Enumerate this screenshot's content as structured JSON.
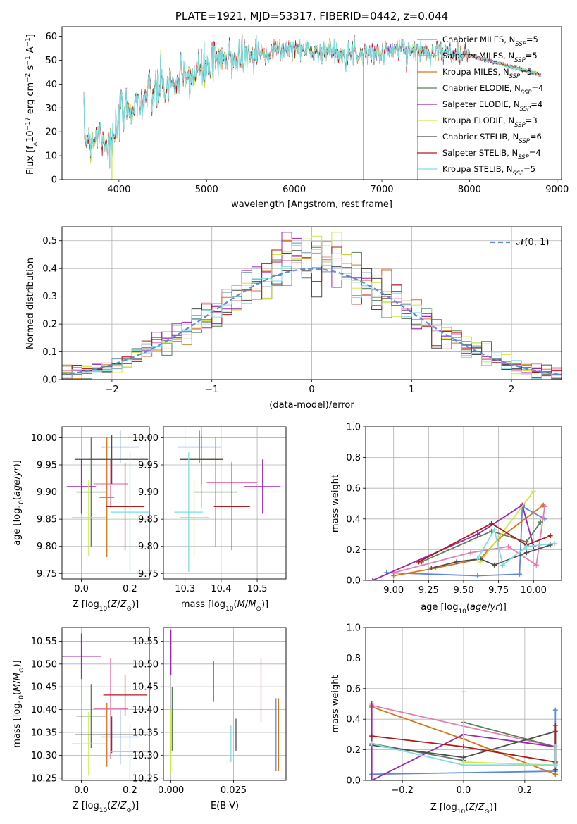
{
  "chart_data": [
    {
      "panel": "spectrum",
      "type": "line",
      "title": "PLATE=1921, MJD=53317, FIBERID=0442, z=0.044",
      "xlabel": "wavelength [Angstrom, rest frame]",
      "ylabel": "Flux [f_λ10^-17 erg cm^-2 s^-1 A^-1]",
      "xlim": [
        3350,
        9050
      ],
      "ylim": [
        0,
        64
      ],
      "xticks": [
        "4000",
        "5000",
        "6000",
        "7000",
        "8000",
        "9000"
      ],
      "yticks": [
        "0",
        "10",
        "20",
        "30",
        "40",
        "50",
        "60"
      ],
      "legend_position": "upper right",
      "continuum": {
        "x": [
          3600,
          3700,
          3800,
          3900,
          3950,
          4000,
          4100,
          4200,
          4300,
          4400,
          4500,
          4600,
          4700,
          4800,
          4900,
          5000,
          5100,
          5200,
          5300,
          5400,
          5500,
          5600,
          5800,
          6000,
          6200,
          6400,
          6600,
          6800,
          7000,
          7200,
          7400,
          7600,
          7800,
          8000,
          8200,
          8400,
          8600,
          8800
        ],
        "y": [
          18,
          17,
          20,
          13,
          17,
          26,
          30,
          32,
          34,
          36,
          39,
          40,
          41,
          43,
          45,
          47,
          48,
          49,
          51,
          52,
          52,
          53,
          54,
          55,
          54,
          54,
          53,
          53,
          53,
          55,
          54,
          54,
          53,
          52,
          50,
          48,
          46,
          44
        ]
      },
      "legend": [
        {
          "name": "Chabrier MILES, N",
          "sub": "SSP",
          "tail": "=5",
          "color": "#6699aa"
        },
        {
          "name": "Salpeter MILES, N",
          "sub": "SSP",
          "tail": "=5",
          "color": "#e37fb4"
        },
        {
          "name": "Kroupa MILES, N",
          "sub": "SSP",
          "tail": "=5",
          "color": "#d4761a"
        },
        {
          "name": "Chabrier ELODIE, N",
          "sub": "SSP",
          "tail": "=4",
          "color": "#5a7f5a"
        },
        {
          "name": "Salpeter ELODIE, N",
          "sub": "SSP",
          "tail": "=4",
          "color": "#9b27b0"
        },
        {
          "name": "Kroupa ELODIE, N",
          "sub": "SSP",
          "tail": "=3",
          "color": "#cde84a"
        },
        {
          "name": "Chabrier STELIB, N",
          "sub": "SSP",
          "tail": "=6",
          "color": "#4d4d4d"
        },
        {
          "name": "Salpeter STELIB, N",
          "sub": "SSP",
          "tail": "=4",
          "color": "#b01a1a"
        },
        {
          "name": "Kroupa STELIB, N",
          "sub": "SSP",
          "tail": "=5",
          "color": "#7fdde0"
        }
      ]
    },
    {
      "panel": "residual_histogram",
      "type": "bar",
      "xlabel": "(data-model)/error",
      "ylabel": "Normed distribution",
      "xlim": [
        -2.5,
        2.5
      ],
      "ylim": [
        0,
        0.55
      ],
      "xticks": [
        "−2",
        "−1",
        "0",
        "1",
        "2"
      ],
      "yticks": [
        "0.0",
        "0.1",
        "0.2",
        "0.3",
        "0.4",
        "0.5"
      ],
      "legend": "𝒩(0, 1)",
      "bin_width": 0.1,
      "bin_start": -2.5,
      "curve": "standard normal"
    },
    {
      "panel": "age_vs_Z",
      "type": "scatter",
      "xlabel": "Z [log10(Z/Z☉)]",
      "ylabel": "age  [log10(age/yr)]",
      "xlim": [
        -0.08,
        0.28
      ],
      "ylim": [
        9.74,
        10.02
      ],
      "xticks": [
        "0.0",
        "0.2"
      ],
      "yticks": [
        "9.75",
        "9.80",
        "9.85",
        "9.90",
        "9.95",
        "10.00"
      ],
      "points": [
        {
          "x": 0.16,
          "xerr": 0.08,
          "y": 9.983,
          "yerr": 0.03,
          "color": "#5e88d8"
        },
        {
          "x": 0.12,
          "xerr": 0.07,
          "y": 9.915,
          "yerr": 0.045,
          "color": "#e37fb4"
        },
        {
          "x": 0.105,
          "xerr": 0.03,
          "y": 9.89,
          "yerr": 0.11,
          "color": "#d4761a"
        },
        {
          "x": 0.04,
          "xerr": 0.06,
          "y": 9.9,
          "yerr": 0.1,
          "color": "#5a7f5a"
        },
        {
          "x": 0.0,
          "xerr": 0.06,
          "y": 9.91,
          "yerr": 0.05,
          "color": "#9b27b0"
        },
        {
          "x": 0.03,
          "xerr": 0.07,
          "y": 9.853,
          "yerr": 0.07,
          "color": "#cde84a"
        },
        {
          "x": 0.125,
          "xerr": 0.15,
          "y": 9.96,
          "yerr": 0.045,
          "color": "#4d4d4d"
        },
        {
          "x": 0.18,
          "xerr": 0.08,
          "y": 9.873,
          "yerr": 0.08,
          "color": "#b01a1a"
        },
        {
          "x": 0.2,
          "xerr": 0.08,
          "y": 9.863,
          "yerr": 0.11,
          "color": "#7fdde0"
        }
      ]
    },
    {
      "panel": "age_vs_mass",
      "type": "scatter",
      "xlabel": "mass [log10(M/M☉)]",
      "ylabel": "",
      "xlim": [
        10.24,
        10.58
      ],
      "ylim": [
        9.74,
        10.02
      ],
      "xticks": [
        "10.3",
        "10.4",
        "10.5"
      ],
      "yticks": [
        "9.75",
        "9.80",
        "9.85",
        "9.90",
        "9.95",
        "10.00"
      ],
      "points": [
        {
          "x": 10.34,
          "xerr": 0.06,
          "y": 9.983,
          "yerr": 0.03,
          "color": "#5e88d8"
        },
        {
          "x": 10.43,
          "xerr": 0.07,
          "y": 9.917,
          "yerr": 0.04,
          "color": "#e37fb4"
        },
        {
          "x": 10.345,
          "xerr": 0.06,
          "y": 9.96,
          "yerr": 0.09,
          "color": "#d4761a"
        },
        {
          "x": 10.385,
          "xerr": 0.06,
          "y": 9.9,
          "yerr": 0.1,
          "color": "#5a7f5a"
        },
        {
          "x": 10.515,
          "xerr": 0.05,
          "y": 9.91,
          "yerr": 0.05,
          "color": "#9b27b0"
        },
        {
          "x": 10.325,
          "xerr": 0.04,
          "y": 9.853,
          "yerr": 0.07,
          "color": "#cde84a"
        },
        {
          "x": 10.345,
          "xerr": 0.06,
          "y": 9.96,
          "yerr": 0.045,
          "color": "#4d4d4d"
        },
        {
          "x": 10.43,
          "xerr": 0.05,
          "y": 9.873,
          "yerr": 0.08,
          "color": "#b01a1a"
        },
        {
          "x": 10.31,
          "xerr": 0.04,
          "y": 9.863,
          "yerr": 0.11,
          "color": "#7fdde0"
        }
      ]
    },
    {
      "panel": "weight_vs_age",
      "type": "line",
      "xlabel": "age  [log10(age/yr)]",
      "ylabel": "mass weight",
      "xlim": [
        8.8,
        10.2
      ],
      "ylim": [
        0,
        1
      ],
      "xticks": [
        "9.00",
        "9.25",
        "9.50",
        "9.75",
        "10.00"
      ],
      "yticks": [
        "0.0",
        "0.2",
        "0.4",
        "0.6",
        "0.8",
        "1.0"
      ],
      "series": [
        {
          "color": "#5e88d8",
          "x": [
            8.95,
            9.6,
            9.9,
            9.92,
            10.08
          ],
          "y": [
            0.05,
            0.03,
            0.04,
            0.48,
            0.4
          ]
        },
        {
          "color": "#e37fb4",
          "x": [
            9.0,
            9.55,
            9.82,
            10.02,
            10.08
          ],
          "y": [
            0.05,
            0.18,
            0.22,
            0.1,
            0.48
          ]
        },
        {
          "color": "#d4761a",
          "x": [
            9.0,
            9.3,
            9.62,
            9.75,
            10.07
          ],
          "y": [
            0.03,
            0.08,
            0.14,
            0.27,
            0.49
          ]
        },
        {
          "color": "#5a7f5a",
          "x": [
            9.2,
            9.7,
            9.95,
            10.05
          ],
          "y": [
            0.12,
            0.32,
            0.25,
            0.38
          ]
        },
        {
          "color": "#9b27b0",
          "x": [
            8.85,
            9.6,
            9.92,
            10.0
          ],
          "y": [
            0.0,
            0.3,
            0.49,
            0.22
          ]
        },
        {
          "color": "#cde84a",
          "x": [
            9.62,
            10.0
          ],
          "y": [
            0.12,
            0.58
          ]
        },
        {
          "color": "#4d4d4d",
          "x": [
            9.27,
            9.45,
            9.62,
            9.72,
            9.95,
            10.12
          ],
          "y": [
            0.08,
            0.12,
            0.14,
            0.1,
            0.18,
            0.23
          ]
        },
        {
          "color": "#b01a1a",
          "x": [
            9.18,
            9.7,
            9.95,
            10.12
          ],
          "y": [
            0.12,
            0.37,
            0.23,
            0.29
          ]
        },
        {
          "color": "#7fdde0",
          "x": [
            9.6,
            9.72,
            9.78,
            9.95,
            10.15
          ],
          "y": [
            0.14,
            0.33,
            0.1,
            0.22,
            0.24
          ]
        }
      ]
    },
    {
      "panel": "mass_vs_Z",
      "type": "scatter",
      "xlabel": "Z [log10(Z/Z☉)]",
      "ylabel": "mass [log10(M/M☉)]",
      "xlim": [
        -0.08,
        0.28
      ],
      "ylim": [
        10.245,
        10.58
      ],
      "xticks": [
        "0.0",
        "0.2"
      ],
      "yticks": [
        "10.25",
        "10.30",
        "10.35",
        "10.40",
        "10.45",
        "10.50",
        "10.55"
      ],
      "points": [
        {
          "x": 0.16,
          "xerr": 0.08,
          "y": 10.34,
          "yerr": 0.06,
          "color": "#5e88d8"
        },
        {
          "x": 0.12,
          "xerr": 0.07,
          "y": 10.402,
          "yerr": 0.11,
          "color": "#e37fb4"
        },
        {
          "x": 0.105,
          "xerr": 0.03,
          "y": 10.345,
          "yerr": 0.07,
          "color": "#d4761a"
        },
        {
          "x": 0.04,
          "xerr": 0.06,
          "y": 10.386,
          "yerr": 0.07,
          "color": "#5a7f5a"
        },
        {
          "x": 0.0,
          "xerr": 0.08,
          "y": 10.517,
          "yerr": 0.05,
          "color": "#9b27b0"
        },
        {
          "x": 0.03,
          "xerr": 0.07,
          "y": 10.325,
          "yerr": 0.07,
          "color": "#cde84a"
        },
        {
          "x": 0.125,
          "xerr": 0.15,
          "y": 10.345,
          "yerr": 0.04,
          "color": "#4d4d4d"
        },
        {
          "x": 0.18,
          "xerr": 0.09,
          "y": 10.432,
          "yerr": 0.045,
          "color": "#b01a1a"
        },
        {
          "x": 0.2,
          "xerr": 0.08,
          "y": 10.308,
          "yerr": 0.06,
          "color": "#7fdde0"
        }
      ]
    },
    {
      "panel": "mass_vs_ebv",
      "type": "scatter",
      "xlabel": "E(B-V)",
      "ylabel": "",
      "xlim": [
        -0.003,
        0.046
      ],
      "ylim": [
        10.245,
        10.58
      ],
      "xticks": [
        "0.000",
        "0.025"
      ],
      "yticks": [
        "10.25",
        "10.30",
        "10.35",
        "10.40",
        "10.45",
        "10.50",
        "10.55"
      ],
      "points": [
        {
          "x": 0.042,
          "y": 10.345,
          "yerr": 0.08,
          "color": "#5e88d8"
        },
        {
          "x": 0.036,
          "y": 10.443,
          "yerr": 0.07,
          "color": "#e37fb4"
        },
        {
          "x": 0.043,
          "y": 10.345,
          "yerr": 0.08,
          "color": "#d4761a"
        },
        {
          "x": 0.0005,
          "y": 10.38,
          "yerr": 0.07,
          "color": "#5a7f5a"
        },
        {
          "x": 0.0,
          "y": 10.525,
          "yerr": 0.05,
          "color": "#9b27b0"
        },
        {
          "x": 0.0,
          "y": 10.33,
          "yerr": 0.07,
          "color": "#cde84a"
        },
        {
          "x": 0.026,
          "y": 10.345,
          "yerr": 0.035,
          "color": "#4d4d4d"
        },
        {
          "x": 0.017,
          "y": 10.462,
          "yerr": 0.045,
          "color": "#b01a1a"
        },
        {
          "x": 0.024,
          "y": 10.325,
          "yerr": 0.04,
          "color": "#7fdde0"
        }
      ]
    },
    {
      "panel": "weight_vs_Z",
      "type": "line",
      "xlabel": "Z [log10(Z/Z☉)]",
      "ylabel": "mass weight",
      "xlim": [
        -0.32,
        0.32
      ],
      "ylim": [
        0,
        1
      ],
      "xticks": [
        "−0.2",
        "0.0",
        "0.2"
      ],
      "yticks": [
        "0.0",
        "0.2",
        "0.4",
        "0.6",
        "0.8",
        "1.0"
      ],
      "series": [
        {
          "color": "#5e88d8",
          "x": [
            -0.3,
            0.3,
            0.3
          ],
          "y": [
            0.04,
            0.06,
            0.46
          ]
        },
        {
          "color": "#e37fb4",
          "x": [
            -0.3,
            0.3,
            0.3
          ],
          "y": [
            0.49,
            0.22,
            0.11
          ]
        },
        {
          "color": "#d4761a",
          "x": [
            -0.3,
            0.0,
            0.3
          ],
          "y": [
            0.48,
            0.27,
            0.04
          ]
        },
        {
          "color": "#5a7f5a",
          "x": [
            -0.3,
            0.0,
            0.0,
            0.3
          ],
          "y": [
            0.24,
            0.13,
            0.38,
            0.22
          ]
        },
        {
          "color": "#9b27b0",
          "x": [
            -0.3,
            -0.3,
            0.0,
            0.3
          ],
          "y": [
            0.5,
            0.0,
            0.3,
            0.22
          ]
        },
        {
          "color": "#cde84a",
          "x": [
            0.0,
            0.0,
            0.3
          ],
          "y": [
            0.58,
            0.12,
            0.1
          ]
        },
        {
          "color": "#4d4d4d",
          "x": [
            -0.3,
            0.0,
            0.3,
            0.3
          ],
          "y": [
            0.23,
            0.15,
            0.32,
            0.07
          ]
        },
        {
          "color": "#b01a1a",
          "x": [
            -0.3,
            0.0,
            0.3,
            0.3
          ],
          "y": [
            0.29,
            0.22,
            0.12,
            0.36
          ]
        },
        {
          "color": "#7fdde0",
          "x": [
            -0.3,
            0.0,
            0.3,
            0.3
          ],
          "y": [
            0.24,
            0.1,
            0.1,
            0.22
          ]
        }
      ]
    }
  ]
}
